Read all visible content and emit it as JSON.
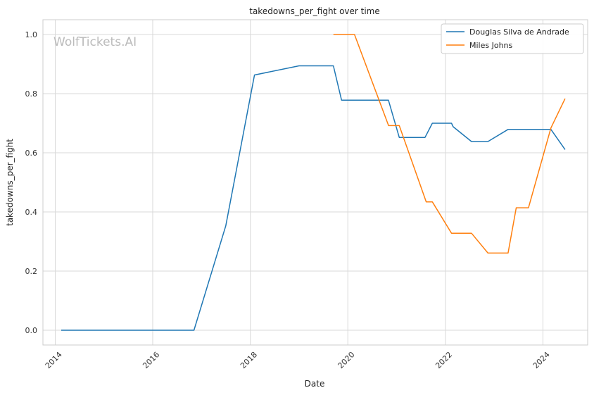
{
  "chart_data": {
    "type": "line",
    "title": "takedowns_per_fight over time",
    "xlabel": "Date",
    "ylabel": "takedowns_per_fight",
    "watermark": "WolfTickets.AI",
    "x_ticks": [
      "2014",
      "2016",
      "2018",
      "2020",
      "2022",
      "2024"
    ],
    "y_ticks": [
      "0.0",
      "0.2",
      "0.4",
      "0.6",
      "0.8",
      "1.0"
    ],
    "xlim": [
      "2013-10-01",
      "2024-12-01"
    ],
    "ylim": [
      -0.05,
      1.05
    ],
    "grid": true,
    "legend_position": "top-right",
    "colors": {
      "grid": "#d9d9d9",
      "axis": "#cccccc"
    },
    "series": [
      {
        "name": "Douglas Silva de Andrade",
        "color": "#1f77b4",
        "points": [
          [
            "2014-02-15",
            0.0
          ],
          [
            "2016-11-05",
            0.0
          ],
          [
            "2017-07-01",
            0.353
          ],
          [
            "2018-02-01",
            0.863
          ],
          [
            "2019-01-01",
            0.894
          ],
          [
            "2019-09-15",
            0.894
          ],
          [
            "2019-11-15",
            0.778
          ],
          [
            "2020-10-31",
            0.778
          ],
          [
            "2021-01-20",
            0.652
          ],
          [
            "2021-08-01",
            0.652
          ],
          [
            "2021-09-25",
            0.7
          ],
          [
            "2022-02-15",
            0.7
          ],
          [
            "2022-02-28",
            0.688
          ],
          [
            "2022-07-15",
            0.638
          ],
          [
            "2022-11-15",
            0.638
          ],
          [
            "2023-04-15",
            0.679
          ],
          [
            "2024-03-01",
            0.679
          ],
          [
            "2024-06-15",
            0.611
          ]
        ]
      },
      {
        "name": "Miles Johns",
        "color": "#ff7f0e",
        "points": [
          [
            "2019-09-15",
            1.0
          ],
          [
            "2020-02-20",
            1.0
          ],
          [
            "2020-11-01",
            0.692
          ],
          [
            "2021-01-20",
            0.692
          ],
          [
            "2021-08-10",
            0.434
          ],
          [
            "2021-09-25",
            0.434
          ],
          [
            "2022-02-15",
            0.328
          ],
          [
            "2022-07-15",
            0.328
          ],
          [
            "2022-11-15",
            0.261
          ],
          [
            "2023-04-15",
            0.261
          ],
          [
            "2023-06-15",
            0.414
          ],
          [
            "2023-09-15",
            0.414
          ],
          [
            "2024-03-01",
            0.684
          ],
          [
            "2024-06-15",
            0.783
          ]
        ]
      }
    ]
  }
}
